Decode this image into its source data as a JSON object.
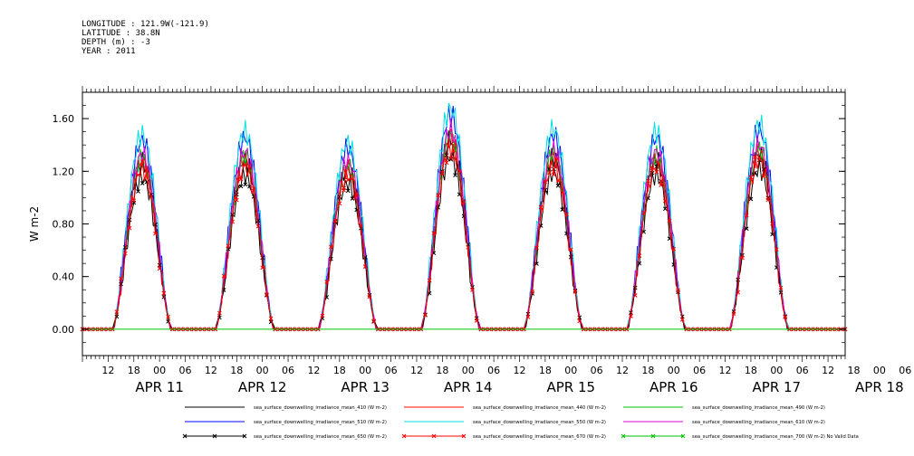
{
  "header": {
    "longitude": "LONGITUDE : 121.9W(-121.9)",
    "latitude": "LATITUDE : 38.8N",
    "depth": "DEPTH (m) : -3",
    "year": "YEAR : 2011"
  },
  "chart_data": {
    "type": "line",
    "ylabel": "W m-2",
    "ylim": [
      -0.2,
      1.8
    ],
    "yticks": [
      0.0,
      0.4,
      0.8,
      1.2,
      1.6
    ],
    "ytick_labels": [
      "0.00",
      "0.40",
      "0.80",
      "1.20",
      "1.60"
    ],
    "x_hour_labels": [
      "12",
      "18",
      "00",
      "06",
      "12",
      "18",
      "00",
      "06",
      "12",
      "18",
      "00",
      "06",
      "12",
      "18",
      "00",
      "06",
      "12",
      "18",
      "00",
      "06",
      "12",
      "18",
      "00",
      "06",
      "12",
      "18",
      "00",
      "06",
      "12",
      "18",
      "00",
      "06"
    ],
    "x_day_labels": [
      "APR 11",
      "APR 12",
      "APR 13",
      "APR 14",
      "APR 15",
      "APR 16",
      "APR 17",
      "APR 18"
    ],
    "days": [
      {
        "date": "APR 11",
        "peak": 1.48
      },
      {
        "date": "APR 12",
        "peak": 1.5
      },
      {
        "date": "APR 13",
        "peak": 1.42
      },
      {
        "date": "APR 14",
        "peak": 1.68
      },
      {
        "date": "APR 15",
        "peak": 1.52
      },
      {
        "date": "APR 16",
        "peak": 1.5
      },
      {
        "date": "APR 17",
        "peak": 1.56
      }
    ],
    "series": [
      {
        "name": "sea_surface_downwelling_irradiance_mean_410 (W m-2)",
        "color": "#000000",
        "rel": 0.86
      },
      {
        "name": "sea_surface_downwelling_irradiance_mean_440 (W m-2)",
        "color": "#ff0000",
        "rel": 0.86
      },
      {
        "name": "sea_surface_downwelling_irradiance_mean_490 (W m-2)",
        "color": "#00c000",
        "rel": 0.88
      },
      {
        "name": "sea_surface_downwelling_irradiance_mean_510 (W m-2)",
        "color": "#0000ff",
        "rel": 0.97
      },
      {
        "name": "sea_surface_downwelling_irradiance_mean_550 (W m-2)",
        "color": "#00e0e0",
        "rel": 1.0
      },
      {
        "name": "sea_surface_downwelling_irradiance_mean_610 (W m-2)",
        "color": "#e000e0",
        "rel": 0.9
      },
      {
        "name": "sea_surface_downwelling_irradiance_mean_650 (W m-2)",
        "color": "#000000",
        "rel": 0.78,
        "marker": "x"
      },
      {
        "name": "sea_surface_downwelling_irradiance_mean_670 (W m-2)",
        "color": "#ff0000",
        "rel": 0.82,
        "marker": "x"
      },
      {
        "name": "sea_surface_downwelling_irradiance_mean_700 (W m-2) No Valid Data",
        "color": "#00c000",
        "rel": 0,
        "marker": "x"
      }
    ]
  }
}
